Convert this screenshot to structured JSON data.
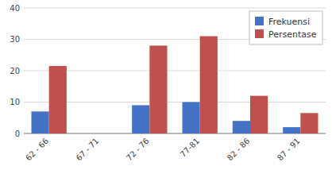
{
  "chart_data": {
    "type": "bar",
    "categories": [
      "62 - 66",
      "67 - 71",
      "72 - 76",
      "77-81",
      "82 - 86",
      "87 - 91"
    ],
    "series": [
      {
        "name": "Frekuensi",
        "color": "#4472c4",
        "values": [
          7,
          0,
          9,
          10,
          4,
          2
        ]
      },
      {
        "name": "Persentase",
        "color": "#c0504d",
        "values": [
          21.5,
          0,
          28,
          31,
          12,
          6.5
        ]
      }
    ],
    "ylim": [
      0,
      40
    ],
    "yticks": [
      0,
      10,
      20,
      30,
      40
    ],
    "grid": true,
    "legend": "right"
  }
}
